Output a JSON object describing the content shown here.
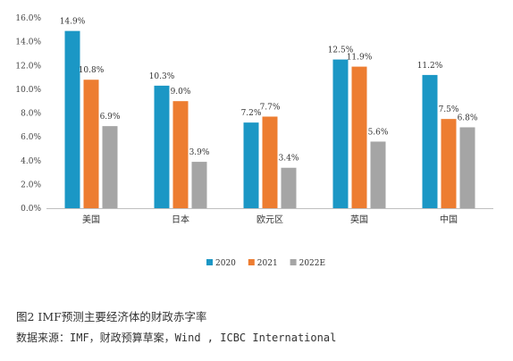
{
  "chart_data": {
    "type": "bar",
    "categories": [
      "美国",
      "日本",
      "欧元区",
      "英国",
      "中国"
    ],
    "series": [
      {
        "name": "2020",
        "values": [
          14.9,
          10.3,
          7.2,
          12.5,
          11.2
        ],
        "labels": [
          "14.9%",
          "10.3%",
          "7.2%",
          "12.5%",
          "11.2%"
        ]
      },
      {
        "name": "2021",
        "values": [
          10.8,
          9.0,
          7.7,
          11.9,
          7.5
        ],
        "labels": [
          "10.8%",
          "9.0%",
          "7.7%",
          "11.9%",
          "7.5%"
        ]
      },
      {
        "name": "2022E",
        "values": [
          6.9,
          3.9,
          3.4,
          5.6,
          6.8
        ],
        "labels": [
          "6.9%",
          "3.9%",
          "3.4%",
          "5.6%",
          "6.8%"
        ]
      }
    ],
    "colors": [
      "#1b97c5",
      "#ed7d31",
      "#a5a5a5"
    ],
    "yticks": [
      "0.0%",
      "2.0%",
      "4.0%",
      "6.0%",
      "8.0%",
      "10.0%",
      "12.0%",
      "14.0%",
      "16.0%"
    ],
    "ylim": [
      0,
      16
    ],
    "grid": false,
    "legend_position": "bottom"
  },
  "caption": "图2  IMF预测主要经济体的财政赤字率",
  "source": "数据来源：IMF，财政预算草案，Wind , ICBC International"
}
